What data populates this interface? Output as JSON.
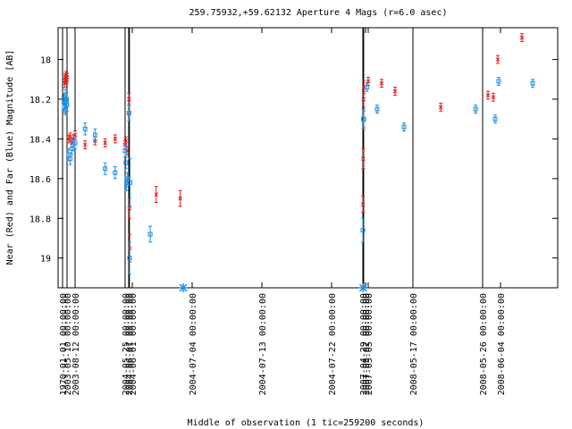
{
  "chart_data": {
    "type": "scatter",
    "title": "259.75932,+59.62132   Aperture 4 Mags (r=6.0 asec)",
    "xlabel": "Middle of observation (1 tic=259200 seconds)",
    "ylabel": "Near (Red) and Far (Blue) Magnitude [AB]",
    "ylim": [
      19.15,
      17.84
    ],
    "y_reversed": true,
    "y_ticks": [
      "18",
      "18.2",
      "18.4",
      "18.6",
      "18.8",
      "19"
    ],
    "y_tick_values": [
      18.0,
      18.2,
      18.4,
      18.6,
      18.8,
      19.0
    ],
    "x_tick_labels": [
      {
        "label": "1970-01-01 00:00:00",
        "i": 0
      },
      {
        "label": "2003-05-10 00:00:00",
        "i": 1
      },
      {
        "label": "2003-08-12 00:00:00",
        "i": 2
      },
      {
        "label": "2004-05-25 00:00:00",
        "i": 3
      },
      {
        "label": "2004-06-01 00:00:00",
        "i": 4
      },
      {
        "label": "2004-06-01 00:00:00",
        "i": 5
      },
      {
        "label": "2004-07-04 00:00:00",
        "i": 6
      },
      {
        "label": "2004-07-13 00:00:00",
        "i": 7
      },
      {
        "label": "2004-07-22 00:00:00",
        "i": 8
      },
      {
        "label": "2007-04-29 00:00:00",
        "i": 9
      },
      {
        "label": "2007-05-02 00:00:00",
        "i": 10
      },
      {
        "label": "2007-05-05 00:00:00",
        "i": 11
      },
      {
        "label": "2008-05-17 00:00:00",
        "i": 12
      },
      {
        "label": "2008-05-26 00:00:00",
        "i": 13
      },
      {
        "label": "2008-06-04 00:00:00",
        "i": 14
      }
    ],
    "observation_lines_i": [
      0,
      1,
      2,
      3,
      4,
      4.2,
      9,
      9.3,
      12,
      13
    ],
    "series": [
      {
        "name": "Near (Red)",
        "color": "#e02020",
        "points": [
          {
            "i": 0.5,
            "y": 18.12,
            "e": 0.02
          },
          {
            "i": 0.6,
            "y": 18.09,
            "e": 0.02
          },
          {
            "i": 0.7,
            "y": 18.1,
            "e": 0.02
          },
          {
            "i": 0.8,
            "y": 18.08,
            "e": 0.02
          },
          {
            "i": 0.9,
            "y": 18.1,
            "e": 0.02
          },
          {
            "i": 1.0,
            "y": 18.09,
            "e": 0.02
          },
          {
            "i": 1.2,
            "y": 18.4,
            "e": 0.02
          },
          {
            "i": 1.4,
            "y": 18.39,
            "e": 0.02
          },
          {
            "i": 1.6,
            "y": 18.42,
            "e": 0.02
          },
          {
            "i": 1.8,
            "y": 18.4,
            "e": 0.02
          },
          {
            "i": 2.0,
            "y": 18.38,
            "e": 0.02
          },
          {
            "i": 2.2,
            "y": 18.43,
            "e": 0.02
          },
          {
            "i": 2.4,
            "y": 18.41,
            "e": 0.02
          },
          {
            "i": 2.6,
            "y": 18.42,
            "e": 0.02
          },
          {
            "i": 2.8,
            "y": 18.4,
            "e": 0.02
          },
          {
            "i": 3.0,
            "y": 18.43,
            "e": 0.02
          },
          {
            "i": 3.2,
            "y": 18.41,
            "e": 0.02
          },
          {
            "i": 3.5,
            "y": 18.46,
            "e": 0.02
          },
          {
            "i": 4.1,
            "y": 18.2,
            "e": 0.03
          },
          {
            "i": 4.2,
            "y": 18.75,
            "e": 0.05
          },
          {
            "i": 4.3,
            "y": 18.95,
            "e": 0.07
          },
          {
            "i": 5.4,
            "y": 18.68,
            "e": 0.04
          },
          {
            "i": 5.8,
            "y": 18.7,
            "e": 0.04
          },
          {
            "i": 9.05,
            "y": 18.73,
            "e": 0.04
          },
          {
            "i": 9.15,
            "y": 18.5,
            "e": 0.05
          },
          {
            "i": 9.25,
            "y": 18.2,
            "e": 0.04
          },
          {
            "i": 9.4,
            "y": 18.14,
            "e": 0.03
          },
          {
            "i": 11.0,
            "y": 18.11,
            "e": 0.02
          },
          {
            "i": 11.3,
            "y": 18.12,
            "e": 0.02
          },
          {
            "i": 11.6,
            "y": 18.16,
            "e": 0.02
          },
          {
            "i": 12.4,
            "y": 18.24,
            "e": 0.02
          },
          {
            "i": 13.3,
            "y": 18.18,
            "e": 0.02
          },
          {
            "i": 13.6,
            "y": 18.19,
            "e": 0.02
          },
          {
            "i": 13.85,
            "y": 18.0,
            "e": 0.02
          },
          {
            "i": 14.6,
            "y": 17.89,
            "e": 0.02
          }
        ]
      },
      {
        "name": "Far (Blue)",
        "color": "#2090e0",
        "points": [
          {
            "i": 0.3,
            "y": 18.2,
            "e": 0.03
          },
          {
            "i": 0.4,
            "y": 18.24,
            "e": 0.03
          },
          {
            "i": 0.5,
            "y": 18.22,
            "e": 0.03
          },
          {
            "i": 0.6,
            "y": 18.18,
            "e": 0.03
          },
          {
            "i": 0.7,
            "y": 18.25,
            "e": 0.03
          },
          {
            "i": 0.8,
            "y": 18.21,
            "e": 0.03
          },
          {
            "i": 0.9,
            "y": 18.2,
            "e": 0.03
          },
          {
            "i": 1.0,
            "y": 18.23,
            "e": 0.03
          },
          {
            "i": 1.2,
            "y": 18.48,
            "e": 0.03
          },
          {
            "i": 1.4,
            "y": 18.5,
            "e": 0.03
          },
          {
            "i": 1.6,
            "y": 18.45,
            "e": 0.03
          },
          {
            "i": 1.8,
            "y": 18.43,
            "e": 0.03
          },
          {
            "i": 2.0,
            "y": 18.42,
            "e": 0.03
          },
          {
            "i": 2.2,
            "y": 18.35,
            "e": 0.03
          },
          {
            "i": 2.4,
            "y": 18.38,
            "e": 0.03
          },
          {
            "i": 2.6,
            "y": 18.55,
            "e": 0.03
          },
          {
            "i": 2.8,
            "y": 18.57,
            "e": 0.03
          },
          {
            "i": 3.0,
            "y": 18.46,
            "e": 0.03
          },
          {
            "i": 3.2,
            "y": 18.52,
            "e": 0.03
          },
          {
            "i": 3.4,
            "y": 18.63,
            "e": 0.03
          },
          {
            "i": 3.6,
            "y": 18.6,
            "e": 0.03
          },
          {
            "i": 4.1,
            "y": 18.27,
            "e": 0.04
          },
          {
            "i": 4.25,
            "y": 19.0,
            "e": 0.08
          },
          {
            "i": 4.4,
            "y": 18.62,
            "e": 0.12
          },
          {
            "i": 5.3,
            "y": 18.88,
            "e": 0.04
          },
          {
            "i": 9.0,
            "y": 18.86,
            "e": 0.06
          },
          {
            "i": 9.2,
            "y": 18.3,
            "e": 0.05
          },
          {
            "i": 9.35,
            "y": 18.3,
            "e": 0.04
          },
          {
            "i": 10.5,
            "y": 18.14,
            "e": 0.02
          },
          {
            "i": 11.2,
            "y": 18.25,
            "e": 0.02
          },
          {
            "i": 11.8,
            "y": 18.34,
            "e": 0.02
          },
          {
            "i": 12.9,
            "y": 18.25,
            "e": 0.02
          },
          {
            "i": 13.7,
            "y": 18.3,
            "e": 0.02
          },
          {
            "i": 13.9,
            "y": 18.11,
            "e": 0.02
          },
          {
            "i": 14.9,
            "y": 18.12,
            "e": 0.02
          }
        ]
      }
    ],
    "offscale_markers": [
      {
        "i": 5.85,
        "color": "#2090e0"
      },
      {
        "i": 9.1,
        "color": "#2090e0"
      }
    ]
  }
}
